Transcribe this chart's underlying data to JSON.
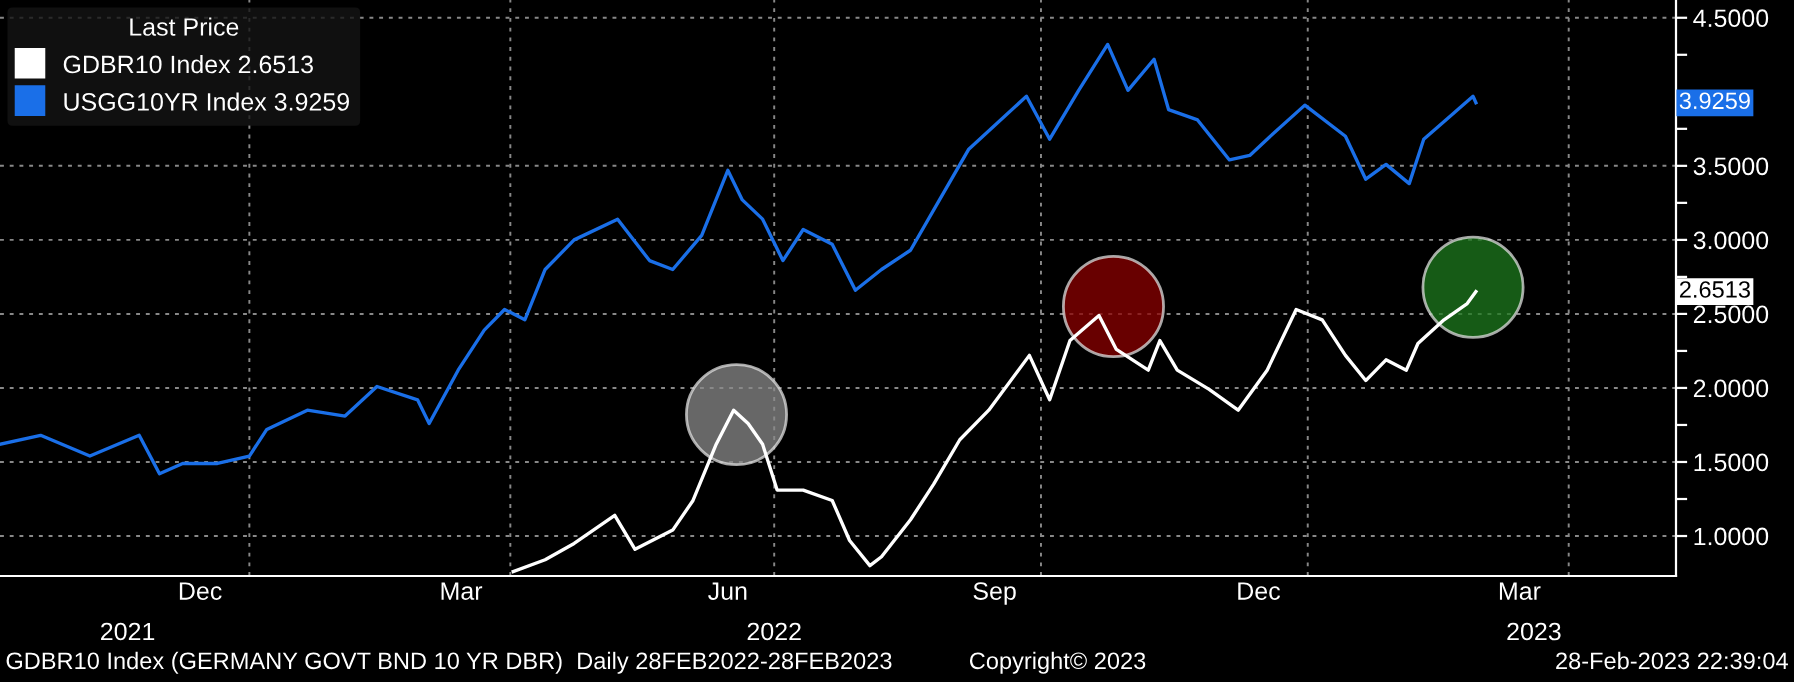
{
  "chart_data": {
    "type": "line",
    "legend_title": "Last Price",
    "legend": "top left",
    "grid": true,
    "xlim": [
      "2021-10-07",
      "2023-05-08"
    ],
    "x2lim": [
      "2021-10-07",
      "2023-05-08"
    ],
    "ylim": [
      0.73,
      4.62
    ],
    "xticks": [
      {
        "value": "2021-12-15",
        "label": "Dec"
      },
      {
        "value": "2022-03-15",
        "label": "Mar"
      },
      {
        "value": "2022-06-15",
        "label": "Jun"
      },
      {
        "value": "2022-09-15",
        "label": "Sep"
      },
      {
        "value": "2022-12-15",
        "label": "Dec"
      },
      {
        "value": "2023-03-15",
        "label": "Mar"
      },
      {
        "value": "2022-01-01",
        "label": null
      },
      {
        "value": "2022-04-01",
        "label": null
      },
      {
        "value": "2022-07-01",
        "label": null
      },
      {
        "value": "2022-10-01",
        "label": null
      },
      {
        "value": "2023-01-01",
        "label": null
      },
      {
        "value": "2023-04-01",
        "label": null
      }
    ],
    "x2ticks": [
      {
        "value": "2021-11-20",
        "label": "2021"
      },
      {
        "value": "2022-07-01",
        "label": "2022"
      },
      {
        "value": "2023-03-20",
        "label": "2023"
      }
    ],
    "yticks": [
      {
        "value": 1,
        "label": "1.0000"
      },
      {
        "value": 1.25,
        "label": null
      },
      {
        "value": 1.5,
        "label": "1.5000"
      },
      {
        "value": 1.75,
        "label": null
      },
      {
        "value": 2,
        "label": "2.0000"
      },
      {
        "value": 2.25,
        "label": null
      },
      {
        "value": 2.5,
        "label": "2.5000"
      },
      {
        "value": 2.75,
        "label": null
      },
      {
        "value": 3,
        "label": "3.0000"
      },
      {
        "value": 3.25,
        "label": null
      },
      {
        "value": 3.5,
        "label": "3.5000"
      },
      {
        "value": 3.75,
        "label": null
      },
      {
        "value": 4,
        "label": null
      },
      {
        "value": 4.25,
        "label": null
      },
      {
        "value": 4.5,
        "label": "4.5000"
      }
    ],
    "annotations": [
      "3.9259",
      "2.6513",
      "GDBR10 Index (GERMANY GOVT BND 10 YR DBR)  Daily 28FEB2022-28FEB2023",
      "Copyright© 2023",
      "28-Feb-2023 22:39:04"
    ],
    "series": [
      {
        "name": "GDBR10 Index 2.6513",
        "color": "#ffffff",
        "x": [
          "2022-04-02",
          "2022-04-13",
          "2022-04-23",
          "2022-05-07",
          "2022-05-14",
          "2022-05-27",
          "2022-06-03",
          "2022-06-11",
          "2022-06-17",
          "2022-06-22",
          "2022-06-27",
          "2022-07-02",
          "2022-07-11",
          "2022-07-21",
          "2022-07-27",
          "2022-08-03",
          "2022-08-07",
          "2022-08-17",
          "2022-08-25",
          "2022-09-03",
          "2022-09-13",
          "2022-09-27",
          "2022-10-04",
          "2022-10-11",
          "2022-10-21",
          "2022-10-27",
          "2022-11-07",
          "2022-11-11",
          "2022-11-17",
          "2022-11-28",
          "2022-12-08",
          "2022-12-18",
          "2022-12-28",
          "2023-01-06",
          "2023-01-14",
          "2023-01-21",
          "2023-01-28",
          "2023-02-04",
          "2023-02-08",
          "2023-02-17",
          "2023-02-25",
          "2023-02-28"
        ],
        "values": [
          0.76,
          0.84,
          0.95,
          1.14,
          0.91,
          1.04,
          1.24,
          1.62,
          1.85,
          1.76,
          1.62,
          1.31,
          1.31,
          1.24,
          0.97,
          0.8,
          0.86,
          1.11,
          1.35,
          1.65,
          1.85,
          2.22,
          1.92,
          2.32,
          2.49,
          2.26,
          2.12,
          2.32,
          2.12,
          1.99,
          1.85,
          2.12,
          2.53,
          2.46,
          2.22,
          2.05,
          2.19,
          2.12,
          2.3,
          2.46,
          2.57,
          2.6513
        ]
      },
      {
        "name": "USGG10YR Index 3.9259",
        "color": "#1a6fe8",
        "x": [
          "2021-10-07",
          "2021-10-21",
          "2021-11-07",
          "2021-11-24",
          "2021-12-01",
          "2021-12-09",
          "2021-12-21",
          "2022-01-01",
          "2022-01-07",
          "2022-01-21",
          "2022-02-03",
          "2022-02-14",
          "2022-02-28",
          "2022-03-04",
          "2022-03-14",
          "2022-03-23",
          "2022-03-30",
          "2022-04-06",
          "2022-04-13",
          "2022-04-23",
          "2022-05-08",
          "2022-05-19",
          "2022-05-27",
          "2022-06-06",
          "2022-06-15",
          "2022-06-20",
          "2022-06-27",
          "2022-07-04",
          "2022-07-11",
          "2022-07-21",
          "2022-07-29",
          "2022-08-07",
          "2022-08-17",
          "2022-08-27",
          "2022-09-06",
          "2022-09-26",
          "2022-10-04",
          "2022-10-14",
          "2022-10-24",
          "2022-10-31",
          "2022-11-09",
          "2022-11-14",
          "2022-11-24",
          "2022-12-05",
          "2022-12-12",
          "2022-12-18",
          "2022-12-31",
          "2023-01-14",
          "2023-01-21",
          "2023-01-28",
          "2023-02-05",
          "2023-02-10",
          "2023-02-20",
          "2023-02-27",
          "2023-02-28"
        ],
        "values": [
          1.62,
          1.68,
          1.54,
          1.68,
          1.42,
          1.49,
          1.49,
          1.54,
          1.72,
          1.85,
          1.81,
          2.01,
          1.92,
          1.76,
          2.12,
          2.39,
          2.53,
          2.46,
          2.8,
          3.0,
          3.14,
          2.86,
          2.8,
          3.03,
          3.47,
          3.27,
          3.14,
          2.86,
          3.07,
          2.97,
          2.66,
          2.8,
          2.93,
          3.27,
          3.61,
          3.97,
          3.68,
          4.01,
          4.32,
          4.01,
          4.22,
          3.88,
          3.81,
          3.54,
          3.57,
          3.68,
          3.91,
          3.7,
          3.41,
          3.51,
          3.38,
          3.68,
          3.85,
          3.97,
          3.9259
        ]
      },
      {
        "type": "scatter",
        "x": [
          "2022-06-18",
          "2022-10-26",
          "2023-02-27"
        ],
        "values": [
          1.82,
          2.55,
          2.68
        ],
        "colors": [
          "#8a8a8a",
          "#8b0000",
          "#1e7a1e"
        ]
      }
    ]
  }
}
